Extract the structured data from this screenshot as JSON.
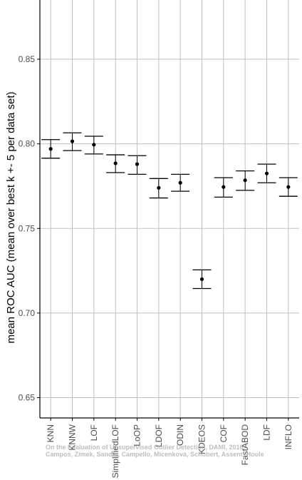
{
  "chart_data": {
    "type": "scatter",
    "ylabel": "mean ROC AUC (mean over best k +- 5 per data set)",
    "xlabel": "",
    "ylim": [
      0.638,
      0.885
    ],
    "yticks": [
      0.65,
      0.7,
      0.75,
      0.8,
      0.85
    ],
    "grid": true,
    "categories": [
      "KNN",
      "KNNW",
      "LOF",
      "SimplifiedLOF",
      "LoOP",
      "LDOF",
      "ODIN",
      "KDEOS",
      "COF",
      "FastABOD",
      "LDF",
      "INFLO"
    ],
    "mean": [
      0.797,
      0.8015,
      0.7995,
      0.7885,
      0.788,
      0.774,
      0.777,
      0.72,
      0.7745,
      0.7785,
      0.7825,
      0.7745
    ],
    "upper": [
      0.8025,
      0.8065,
      0.8045,
      0.7935,
      0.793,
      0.7795,
      0.782,
      0.7255,
      0.78,
      0.784,
      0.788,
      0.78
    ],
    "lower": [
      0.7915,
      0.796,
      0.794,
      0.783,
      0.782,
      0.768,
      0.772,
      0.7145,
      0.7685,
      0.7725,
      0.777,
      0.769
    ],
    "colors": {
      "grid": "#bfbfbf",
      "axis": "#000000",
      "point": "#000000"
    }
  },
  "watermark": {
    "line1": "On the Evaluation of Unsupervised Outlier Detection, DAMI, 2016.",
    "line2": "Campos, Zimek, Sander, Campello, Micenková, Schubert, Assent, Houle"
  }
}
